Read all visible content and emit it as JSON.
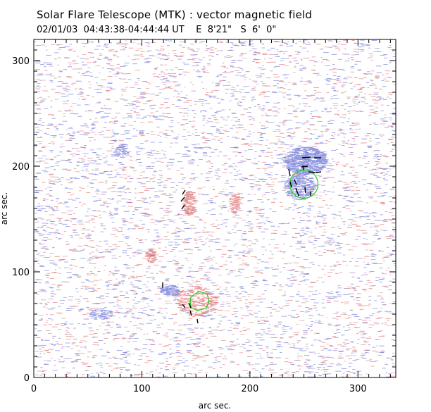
{
  "header": {
    "title": "Solar Flare Telescope (MTK) : vector magnetic field",
    "date": "02/01/03",
    "time_range": "04:43:38-04:44:44 UT",
    "pos_ew": "E  8'21\"",
    "pos_ns": "S  6'  0\""
  },
  "axes": {
    "xlabel": "arc sec.",
    "ylabel": "arc sec.",
    "x_ticks": [
      "0",
      "100",
      "200",
      "300"
    ],
    "y_ticks": [
      "0",
      "100",
      "200",
      "300"
    ],
    "xlim": [
      0,
      335
    ],
    "ylim": [
      0,
      320
    ]
  },
  "colors": {
    "positive_polarity": "#e07070",
    "negative_polarity": "#6a74d8",
    "contour": "#22cc22",
    "vectors": "#000000",
    "frame": "#000000"
  },
  "regions": [
    {
      "name": "negative-spot-upper-right",
      "cx": 250,
      "cy": 200,
      "polarity": "negative"
    },
    {
      "name": "positive-patch-center",
      "cx": 142,
      "cy": 165,
      "polarity": "positive"
    },
    {
      "name": "positive-patch-lower",
      "cx": 150,
      "cy": 75,
      "polarity": "positive"
    }
  ]
}
